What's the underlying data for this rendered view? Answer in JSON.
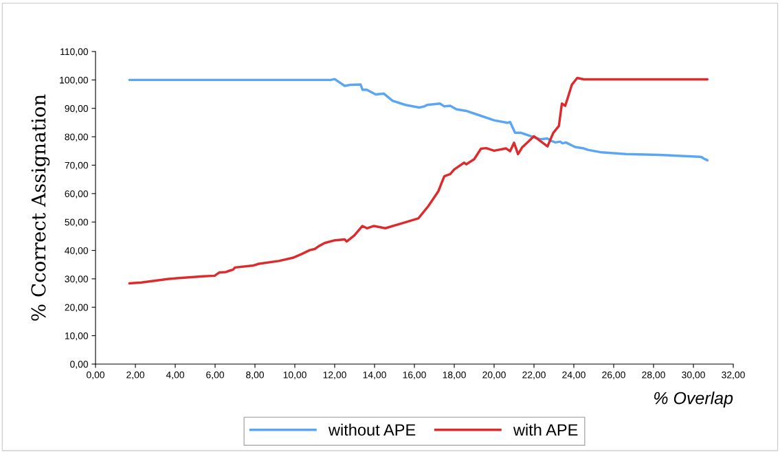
{
  "chart_data": {
    "type": "line",
    "xlabel": "% Overlap",
    "ylabel": "% Ccorrect Assignation",
    "xlim": [
      0,
      32
    ],
    "ylim": [
      0,
      110
    ],
    "xticks": [
      {
        "value": 0,
        "label": "0,00"
      },
      {
        "value": 2,
        "label": "2,00"
      },
      {
        "value": 4,
        "label": "4,00"
      },
      {
        "value": 6,
        "label": "6,00"
      },
      {
        "value": 8,
        "label": "8,00"
      },
      {
        "value": 10,
        "label": "10,00"
      },
      {
        "value": 12,
        "label": "12,00"
      },
      {
        "value": 14,
        "label": "14,00"
      },
      {
        "value": 16,
        "label": "16,00"
      },
      {
        "value": 18,
        "label": "18,00"
      },
      {
        "value": 20,
        "label": "20,00"
      },
      {
        "value": 22,
        "label": "22,00"
      },
      {
        "value": 24,
        "label": "24,00"
      },
      {
        "value": 26,
        "label": "26,00"
      },
      {
        "value": 28,
        "label": "28,00"
      },
      {
        "value": 30,
        "label": "30,00"
      },
      {
        "value": 32,
        "label": "32,00"
      }
    ],
    "yticks": [
      {
        "value": 0,
        "label": "0,00"
      },
      {
        "value": 10,
        "label": "10,00"
      },
      {
        "value": 20,
        "label": "20,00"
      },
      {
        "value": 30,
        "label": "30,00"
      },
      {
        "value": 40,
        "label": "40,00"
      },
      {
        "value": 50,
        "label": "50,00"
      },
      {
        "value": 60,
        "label": "60,00"
      },
      {
        "value": 70,
        "label": "70,00"
      },
      {
        "value": 80,
        "label": "80,00"
      },
      {
        "value": 90,
        "label": "90,00"
      },
      {
        "value": 100,
        "label": "100,00"
      },
      {
        "value": 110,
        "label": "110,00"
      }
    ],
    "grid": false,
    "legend": "bottom",
    "marker": "none",
    "line_style": "solid",
    "series": [
      {
        "name": "without APE",
        "color": "#5aa5f5",
        "x": [
          1.7,
          11.8,
          12.0,
          12.5,
          12.8,
          13.3,
          13.4,
          13.6,
          14.06,
          14.46,
          14.9,
          15.55,
          16.24,
          16.5,
          16.64,
          17.28,
          17.5,
          17.8,
          18.1,
          18.6,
          19.2,
          20.0,
          20.67,
          20.8,
          21.05,
          21.35,
          21.93,
          22.1,
          22.33,
          22.68,
          22.85,
          23.08,
          23.31,
          23.43,
          23.6,
          24.06,
          24.5,
          24.7,
          25.4,
          26.6,
          28.3,
          30.4,
          30.5,
          30.7
        ],
        "values": [
          100,
          100,
          100.3,
          97.9,
          98.3,
          98.4,
          96.5,
          96.6,
          94.9,
          95.2,
          92.7,
          91.2,
          90.3,
          90.7,
          91.2,
          91.7,
          90.7,
          90.9,
          89.7,
          89.1,
          87.7,
          85.8,
          84.9,
          85.2,
          81.4,
          81.4,
          80.0,
          79.6,
          79.1,
          79.4,
          78.6,
          78.0,
          78.3,
          77.7,
          78.0,
          76.4,
          75.9,
          75.4,
          74.5,
          73.9,
          73.6,
          72.9,
          72.4,
          71.7
        ]
      },
      {
        "name": "with APE",
        "color": "#dd2a2a",
        "x": [
          1.7,
          2.3,
          3.68,
          5.4,
          5.98,
          6.2,
          6.55,
          6.78,
          6.9,
          7.0,
          7.93,
          8.2,
          9.2,
          9.9,
          10.34,
          10.75,
          11.0,
          11.2,
          11.5,
          11.96,
          12.5,
          12.6,
          12.99,
          13.39,
          13.62,
          13.97,
          14.54,
          15.4,
          16.2,
          16.7,
          17.2,
          17.5,
          17.8,
          18.0,
          18.5,
          18.6,
          19.0,
          19.34,
          19.6,
          20.0,
          20.6,
          20.8,
          21.0,
          21.2,
          21.4,
          22.0,
          22.68,
          22.97,
          23.25,
          23.4,
          23.57,
          23.9,
          24.17,
          24.5,
          30.7
        ],
        "values": [
          28.4,
          28.7,
          30.0,
          30.9,
          31.1,
          32.2,
          32.4,
          33.0,
          33.2,
          34.0,
          34.7,
          35.3,
          36.3,
          37.4,
          38.7,
          40.1,
          40.5,
          41.5,
          42.6,
          43.5,
          43.9,
          43.1,
          45.3,
          48.6,
          47.8,
          48.6,
          47.8,
          49.6,
          51.3,
          55.6,
          60.8,
          66.1,
          66.9,
          68.5,
          70.9,
          70.3,
          72.1,
          75.8,
          76.0,
          75.1,
          75.9,
          74.9,
          77.9,
          73.9,
          76.2,
          80.2,
          76.6,
          81.4,
          83.8,
          91.7,
          90.9,
          98.3,
          100.7,
          100.2,
          100.2
        ]
      }
    ]
  }
}
